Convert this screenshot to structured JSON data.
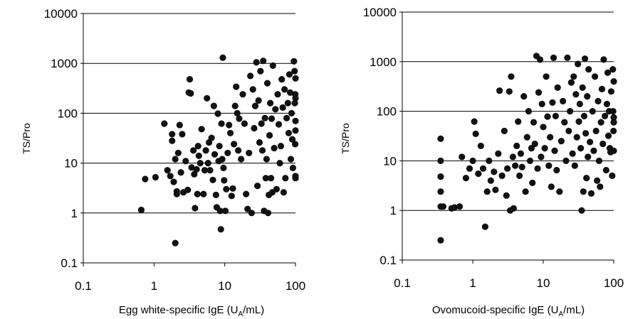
{
  "chart_data": [
    {
      "type": "scatter",
      "xlabel": {
        "pre": "Egg white-specific IgE (U",
        "sub": "A",
        "post": "/mL)"
      },
      "ylabel": "TS/Pro",
      "xscale": "log",
      "yscale": "log",
      "xlim": [
        0.1,
        100
      ],
      "ylim": [
        0.1,
        10000
      ],
      "xticks": [
        "0.1",
        "1",
        "10",
        "100"
      ],
      "yticks": [
        "0.1",
        "1",
        "10",
        "100",
        "1000",
        "10000"
      ],
      "grid": "horizontal",
      "marker_color": "#111111",
      "points": [
        [
          0.66,
          1.15
        ],
        [
          0.75,
          4.8
        ],
        [
          1.05,
          5.2
        ],
        [
          1.4,
          62
        ],
        [
          1.55,
          7.2
        ],
        [
          1.7,
          5.5
        ],
        [
          1.8,
          38
        ],
        [
          1.8,
          28
        ],
        [
          1.9,
          4.2
        ],
        [
          2.0,
          0.25
        ],
        [
          2.0,
          12
        ],
        [
          2.1,
          2.7
        ],
        [
          2.1,
          2.4
        ],
        [
          2.2,
          16
        ],
        [
          2.3,
          58
        ],
        [
          2.4,
          6.5
        ],
        [
          2.5,
          38
        ],
        [
          2.6,
          2.6
        ],
        [
          2.8,
          11
        ],
        [
          3.0,
          2.9
        ],
        [
          3.1,
          260
        ],
        [
          3.2,
          480
        ],
        [
          3.3,
          250
        ],
        [
          3.4,
          8.2
        ],
        [
          3.6,
          18
        ],
        [
          3.7,
          6.0
        ],
        [
          3.8,
          1.25
        ],
        [
          4.0,
          7.5
        ],
        [
          4.1,
          2.4
        ],
        [
          4.2,
          22
        ],
        [
          4.3,
          14
        ],
        [
          4.5,
          10
        ],
        [
          4.7,
          48
        ],
        [
          5.0,
          2.4
        ],
        [
          5.2,
          7.2
        ],
        [
          5.4,
          18
        ],
        [
          5.6,
          200
        ],
        [
          5.8,
          10
        ],
        [
          6.0,
          26
        ],
        [
          6.2,
          7.2
        ],
        [
          6.5,
          32
        ],
        [
          6.8,
          4.6
        ],
        [
          7.0,
          140
        ],
        [
          7.2,
          15
        ],
        [
          7.5,
          2.3
        ],
        [
          7.7,
          1.3
        ],
        [
          8.0,
          98
        ],
        [
          8.2,
          11
        ],
        [
          8.4,
          22
        ],
        [
          8.6,
          1.1
        ],
        [
          8.8,
          0.47
        ],
        [
          9.0,
          62
        ],
        [
          9.2,
          12
        ],
        [
          9.4,
          1300
        ],
        [
          9.6,
          8.0
        ],
        [
          9.8,
          4.5
        ],
        [
          10.2,
          1.1
        ],
        [
          10.5,
          3.0
        ],
        [
          11,
          16
        ],
        [
          11.5,
          58
        ],
        [
          12,
          40
        ],
        [
          12.5,
          2.2
        ],
        [
          13,
          3.1
        ],
        [
          13.5,
          24
        ],
        [
          14,
          140
        ],
        [
          14.5,
          340
        ],
        [
          15,
          100
        ],
        [
          15.5,
          18
        ],
        [
          16,
          78
        ],
        [
          17,
          12
        ],
        [
          18,
          240
        ],
        [
          19,
          62
        ],
        [
          20,
          2.4
        ],
        [
          21,
          1.2
        ],
        [
          22,
          16
        ],
        [
          23,
          560
        ],
        [
          24,
          1.0
        ],
        [
          25,
          300
        ],
        [
          26,
          50
        ],
        [
          27,
          140
        ],
        [
          28,
          1050
        ],
        [
          29,
          3.5
        ],
        [
          30,
          180
        ],
        [
          31,
          26
        ],
        [
          32,
          700
        ],
        [
          33,
          62
        ],
        [
          34,
          18
        ],
        [
          35,
          1120
        ],
        [
          36,
          1.1
        ],
        [
          37,
          80
        ],
        [
          38,
          5.0
        ],
        [
          39,
          12
        ],
        [
          40,
          400
        ],
        [
          41,
          1.0
        ],
        [
          42,
          2.3
        ],
        [
          43,
          36
        ],
        [
          44,
          160
        ],
        [
          45,
          5.0
        ],
        [
          46,
          78
        ],
        [
          47,
          2.6
        ],
        [
          48,
          900
        ],
        [
          50,
          20
        ],
        [
          52,
          120
        ],
        [
          54,
          3.0
        ],
        [
          56,
          240
        ],
        [
          58,
          60
        ],
        [
          60,
          10
        ],
        [
          62,
          22
        ],
        [
          64,
          480
        ],
        [
          66,
          130
        ],
        [
          68,
          2.6
        ],
        [
          70,
          300
        ],
        [
          72,
          5.0
        ],
        [
          75,
          80
        ],
        [
          78,
          160
        ],
        [
          80,
          40
        ],
        [
          82,
          600
        ],
        [
          84,
          260
        ],
        [
          86,
          12
        ],
        [
          88,
          100
        ],
        [
          90,
          30
        ],
        [
          92,
          8
        ],
        [
          95,
          1100
        ],
        [
          97,
          700
        ],
        [
          98,
          160
        ],
        [
          99,
          24
        ],
        [
          100,
          5.5
        ],
        [
          100,
          45
        ],
        [
          100,
          200
        ],
        [
          100,
          500
        ],
        [
          100,
          70
        ],
        [
          100,
          5.0
        ],
        [
          99,
          240
        ]
      ]
    },
    {
      "type": "scatter",
      "xlabel": {
        "pre": "Ovomucoid-specific IgE (U",
        "sub": "A",
        "post": "/mL)"
      },
      "ylabel": "TS/Pro",
      "xscale": "log",
      "yscale": "log",
      "xlim": [
        0.1,
        100
      ],
      "ylim": [
        0.1,
        10000
      ],
      "xticks": [
        "0.1",
        "1",
        "10",
        "100"
      ],
      "yticks": [
        "0.1",
        "1",
        "10",
        "100",
        "1000",
        "10000"
      ],
      "grid": "horizontal",
      "marker_color": "#111111",
      "points": [
        [
          0.35,
          0.25
        ],
        [
          0.35,
          1.2
        ],
        [
          0.35,
          2.4
        ],
        [
          0.35,
          4.8
        ],
        [
          0.35,
          10
        ],
        [
          0.35,
          28
        ],
        [
          0.38,
          1.2
        ],
        [
          0.5,
          1.1
        ],
        [
          0.55,
          1.15
        ],
        [
          0.65,
          1.2
        ],
        [
          0.7,
          12
        ],
        [
          0.8,
          4.5
        ],
        [
          0.9,
          7.0
        ],
        [
          1.0,
          10
        ],
        [
          1.05,
          62
        ],
        [
          1.1,
          35
        ],
        [
          1.2,
          5.5
        ],
        [
          1.3,
          20
        ],
        [
          1.4,
          7.0
        ],
        [
          1.5,
          0.47
        ],
        [
          1.6,
          2.4
        ],
        [
          1.7,
          10
        ],
        [
          1.8,
          4.0
        ],
        [
          2.0,
          6.0
        ],
        [
          2.1,
          2.6
        ],
        [
          2.3,
          14
        ],
        [
          2.4,
          260
        ],
        [
          2.6,
          5.0
        ],
        [
          2.8,
          40
        ],
        [
          3.0,
          2.0
        ],
        [
          3.1,
          7.0
        ],
        [
          3.3,
          250
        ],
        [
          3.4,
          1.0
        ],
        [
          3.5,
          500
        ],
        [
          3.7,
          12
        ],
        [
          3.8,
          1.1
        ],
        [
          4.0,
          8.0
        ],
        [
          4.2,
          20
        ],
        [
          4.4,
          62
        ],
        [
          4.6,
          5.0
        ],
        [
          4.8,
          14
        ],
        [
          5.0,
          7.5
        ],
        [
          5.3,
          200
        ],
        [
          5.6,
          2.4
        ],
        [
          5.9,
          30
        ],
        [
          6.2,
          100
        ],
        [
          6.5,
          10
        ],
        [
          6.8,
          18
        ],
        [
          7.0,
          3.6
        ],
        [
          7.3,
          60
        ],
        [
          7.6,
          22
        ],
        [
          8.0,
          1300
        ],
        [
          8.3,
          7.0
        ],
        [
          8.6,
          240
        ],
        [
          9.0,
          1100
        ],
        [
          9.3,
          12
        ],
        [
          9.6,
          140
        ],
        [
          10,
          48
        ],
        [
          10.5,
          18
        ],
        [
          11,
          500
        ],
        [
          11.5,
          78
        ],
        [
          12,
          8.0
        ],
        [
          12.5,
          30
        ],
        [
          13,
          3.0
        ],
        [
          13.5,
          150
        ],
        [
          14,
          1200
        ],
        [
          14.5,
          16
        ],
        [
          15,
          80
        ],
        [
          15.5,
          6.5
        ],
        [
          16,
          300
        ],
        [
          17,
          2.4
        ],
        [
          18,
          25
        ],
        [
          19,
          160
        ],
        [
          20,
          60
        ],
        [
          21,
          10
        ],
        [
          22,
          1200
        ],
        [
          23,
          40
        ],
        [
          24,
          100
        ],
        [
          25,
          380
        ],
        [
          26,
          14
        ],
        [
          27,
          500
        ],
        [
          28,
          8.0
        ],
        [
          29,
          220
        ],
        [
          30,
          30
        ],
        [
          31,
          900
        ],
        [
          32,
          62
        ],
        [
          33,
          140
        ],
        [
          34,
          18
        ],
        [
          35,
          1.0
        ],
        [
          36,
          300
        ],
        [
          37,
          2.4
        ],
        [
          38,
          80
        ],
        [
          39,
          1150
        ],
        [
          40,
          36
        ],
        [
          41,
          4.5
        ],
        [
          42,
          200
        ],
        [
          43,
          12
        ],
        [
          44,
          700
        ],
        [
          46,
          24
        ],
        [
          48,
          2.2
        ],
        [
          50,
          100
        ],
        [
          52,
          16
        ],
        [
          54,
          500
        ],
        [
          56,
          40
        ],
        [
          58,
          4.0
        ],
        [
          60,
          160
        ],
        [
          62,
          10
        ],
        [
          64,
          3.0
        ],
        [
          66,
          60
        ],
        [
          68,
          280
        ],
        [
          70,
          22
        ],
        [
          72,
          1100
        ],
        [
          75,
          80
        ],
        [
          78,
          6.5
        ],
        [
          80,
          140
        ],
        [
          82,
          600
        ],
        [
          84,
          32
        ],
        [
          86,
          100
        ],
        [
          88,
          18
        ],
        [
          90,
          15
        ],
        [
          92,
          250
        ],
        [
          95,
          5.0
        ],
        [
          97,
          700
        ],
        [
          98,
          100
        ],
        [
          99,
          40
        ],
        [
          100,
          400
        ],
        [
          100,
          75
        ],
        [
          100,
          16
        ],
        [
          100,
          60
        ]
      ]
    }
  ]
}
